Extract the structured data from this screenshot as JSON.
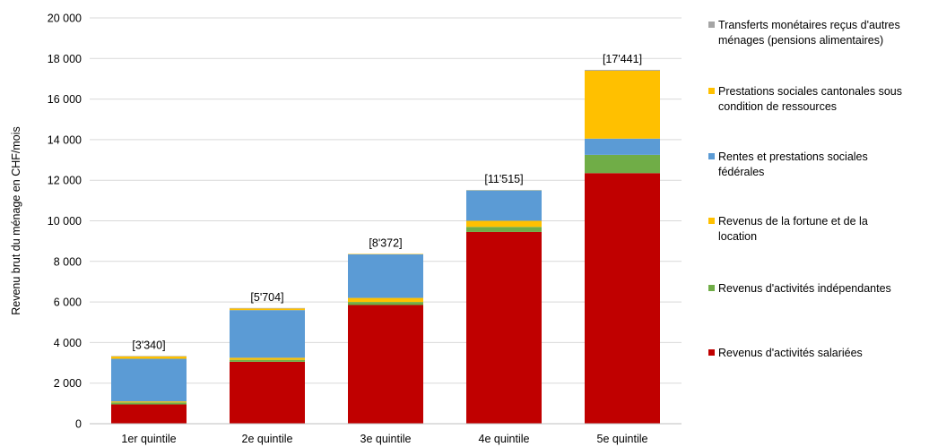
{
  "chart_data": {
    "type": "bar",
    "stacked": true,
    "ylabel": "Revenu brut du ménage en CHF/mois",
    "ylim": [
      0,
      20000
    ],
    "yticks": [
      0,
      2000,
      4000,
      6000,
      8000,
      10000,
      12000,
      14000,
      16000,
      18000,
      20000
    ],
    "ytick_labels": [
      "0",
      "2 000",
      "4 000",
      "6 000",
      "8 000",
      "10 000",
      "12 000",
      "14 000",
      "16 000",
      "18 000",
      "20 000"
    ],
    "grid": true,
    "legend_position": "right",
    "categories": [
      "1er quintile",
      "2e quintile",
      "3e quintile",
      "4e quintile",
      "5e quintile"
    ],
    "total_labels": [
      "[3'340]",
      "[5'704]",
      "[8'372]",
      "[11'515]",
      "[17'441]"
    ],
    "series": [
      {
        "name": "Revenus d'activités salariées",
        "color": "#c00000",
        "values": [
          950,
          3050,
          5850,
          9450,
          12350
        ]
      },
      {
        "name": "Revenus d'activités indépendantes",
        "color": "#70ad47",
        "values": [
          100,
          100,
          150,
          250,
          900
        ]
      },
      {
        "name": "Revenus de la fortune et de la location",
        "color": "#ffc000",
        "values": [
          50,
          100,
          200,
          300,
          0
        ]
      },
      {
        "name": "Rentes et prestations sociales fédérales",
        "color": "#5b9bd5",
        "values": [
          2100,
          2350,
          2150,
          1500,
          800
        ]
      },
      {
        "name": "Prestations sociales cantonales sous condition de ressources",
        "color": "#ffc000",
        "values": [
          120,
          80,
          20,
          10,
          3350
        ]
      },
      {
        "name": "Transferts monétaires reçus d'autres ménages (pensions alimentaires)",
        "color": "#a5a5a5",
        "values": [
          20,
          24,
          2,
          5,
          41
        ]
      }
    ],
    "legend": [
      {
        "lines": [
          "Transferts monétaires reçus d'autres",
          "ménages (pensions alimentaires)"
        ],
        "color": "#a5a5a5"
      },
      {
        "lines": [
          "Prestations sociales cantonales sous",
          "condition de ressources"
        ],
        "color": "#ffc000"
      },
      {
        "lines": [
          "Rentes et prestations sociales",
          "fédérales"
        ],
        "color": "#5b9bd5"
      },
      {
        "lines": [
          "Revenus de la fortune et de la",
          "location"
        ],
        "color": "#ffc000"
      },
      {
        "lines": [
          "Revenus d'activités indépendantes"
        ],
        "color": "#70ad47"
      },
      {
        "lines": [
          "Revenus d'activités salariées"
        ],
        "color": "#c00000"
      }
    ]
  }
}
